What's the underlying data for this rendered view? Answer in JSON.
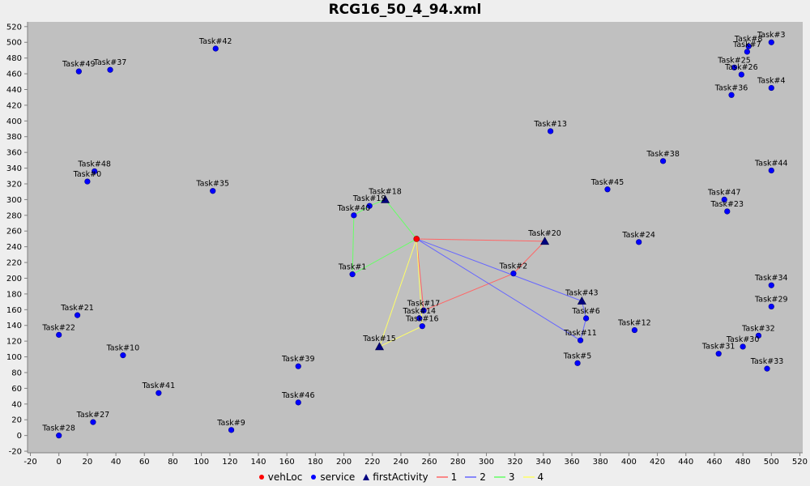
{
  "title": "RCG16_50_4_94.xml",
  "chart_data": {
    "type": "scatter",
    "title": "RCG16_50_4_94.xml",
    "xlabel": "",
    "ylabel": "",
    "xlim": [
      -22,
      522
    ],
    "ylim": [
      -22,
      526
    ],
    "x_ticks": [
      -20,
      0,
      20,
      40,
      60,
      80,
      100,
      120,
      140,
      160,
      180,
      200,
      220,
      240,
      260,
      280,
      300,
      320,
      340,
      360,
      380,
      400,
      420,
      440,
      460,
      480,
      500,
      520
    ],
    "y_ticks": [
      -20,
      0,
      20,
      40,
      60,
      80,
      100,
      120,
      140,
      160,
      180,
      200,
      220,
      240,
      260,
      280,
      300,
      320,
      340,
      360,
      380,
      400,
      420,
      440,
      460,
      480,
      500,
      520
    ],
    "grid": false,
    "background": "#c0c0c0",
    "legend_position": "bottom",
    "legend": [
      {
        "label": "vehLoc",
        "symbol": "circle",
        "color": "#ff0000"
      },
      {
        "label": "service",
        "symbol": "circle",
        "color": "#0000ff"
      },
      {
        "label": "firstActivity",
        "symbol": "triangle",
        "color": "#000080"
      },
      {
        "label": "1",
        "symbol": "line",
        "color": "#ff6666"
      },
      {
        "label": "2",
        "symbol": "line",
        "color": "#6666ff"
      },
      {
        "label": "3",
        "symbol": "line",
        "color": "#66ff66"
      },
      {
        "label": "4",
        "symbol": "line",
        "color": "#ffff66"
      }
    ],
    "vehLoc": {
      "x": 251,
      "y": 250
    },
    "service": [
      {
        "label": "Task#3",
        "x": 500,
        "y": 500
      },
      {
        "label": "Task#8",
        "x": 484,
        "y": 495
      },
      {
        "label": "Task#7",
        "x": 483,
        "y": 488
      },
      {
        "label": "Task#25",
        "x": 474,
        "y": 468
      },
      {
        "label": "Task#26",
        "x": 479,
        "y": 459
      },
      {
        "label": "Task#4",
        "x": 500,
        "y": 442
      },
      {
        "label": "Task#36",
        "x": 472,
        "y": 433
      },
      {
        "label": "Task#42",
        "x": 110,
        "y": 492
      },
      {
        "label": "Task#49",
        "x": 14,
        "y": 463
      },
      {
        "label": "Task#37",
        "x": 36,
        "y": 465
      },
      {
        "label": "Task#13",
        "x": 345,
        "y": 387
      },
      {
        "label": "Task#38",
        "x": 424,
        "y": 349
      },
      {
        "label": "Task#44",
        "x": 500,
        "y": 337
      },
      {
        "label": "Task#48",
        "x": 25,
        "y": 336
      },
      {
        "label": "Task#0",
        "x": 20,
        "y": 323
      },
      {
        "label": "Task#35",
        "x": 108,
        "y": 311
      },
      {
        "label": "Task#45",
        "x": 385,
        "y": 313
      },
      {
        "label": "Task#47",
        "x": 467,
        "y": 300
      },
      {
        "label": "Task#23",
        "x": 469,
        "y": 285
      },
      {
        "label": "Task#19",
        "x": 218,
        "y": 292
      },
      {
        "label": "Task#40",
        "x": 207,
        "y": 280
      },
      {
        "label": "Task#24",
        "x": 407,
        "y": 246
      },
      {
        "label": "Task#2",
        "x": 319,
        "y": 206
      },
      {
        "label": "Task#1",
        "x": 206,
        "y": 205
      },
      {
        "label": "Task#34",
        "x": 500,
        "y": 191
      },
      {
        "label": "Task#29",
        "x": 500,
        "y": 164
      },
      {
        "label": "Task#17",
        "x": 256,
        "y": 159
      },
      {
        "label": "Task#14",
        "x": 253,
        "y": 149
      },
      {
        "label": "Task#16",
        "x": 255,
        "y": 139
      },
      {
        "label": "Task#6",
        "x": 370,
        "y": 149
      },
      {
        "label": "Task#11",
        "x": 366,
        "y": 121
      },
      {
        "label": "Task#12",
        "x": 404,
        "y": 134
      },
      {
        "label": "Task#32",
        "x": 491,
        "y": 127
      },
      {
        "label": "Task#30",
        "x": 480,
        "y": 113
      },
      {
        "label": "Task#31",
        "x": 463,
        "y": 104
      },
      {
        "label": "Task#33",
        "x": 497,
        "y": 85
      },
      {
        "label": "Task#5",
        "x": 364,
        "y": 92
      },
      {
        "label": "Task#21",
        "x": 13,
        "y": 153
      },
      {
        "label": "Task#22",
        "x": 0,
        "y": 128
      },
      {
        "label": "Task#10",
        "x": 45,
        "y": 102
      },
      {
        "label": "Task#39",
        "x": 168,
        "y": 88
      },
      {
        "label": "Task#41",
        "x": 70,
        "y": 54
      },
      {
        "label": "Task#46",
        "x": 168,
        "y": 42
      },
      {
        "label": "Task#27",
        "x": 24,
        "y": 17
      },
      {
        "label": "Task#9",
        "x": 121,
        "y": 7
      },
      {
        "label": "Task#28",
        "x": 0,
        "y": 0
      }
    ],
    "firstActivity": [
      {
        "label": "Task#18",
        "x": 229,
        "y": 300
      },
      {
        "label": "Task#20",
        "x": 341,
        "y": 247
      },
      {
        "label": "Task#43",
        "x": 367,
        "y": 171
      },
      {
        "label": "Task#15",
        "x": 225,
        "y": 113
      }
    ],
    "routes": [
      {
        "name": "1",
        "color": "#ff6666",
        "points": [
          [
            251,
            250
          ],
          [
            341,
            247
          ],
          [
            319,
            206
          ],
          [
            256,
            159
          ],
          [
            251,
            250
          ]
        ]
      },
      {
        "name": "2",
        "color": "#6666ff",
        "points": [
          [
            251,
            250
          ],
          [
            367,
            171
          ],
          [
            370,
            149
          ],
          [
            366,
            121
          ],
          [
            251,
            250
          ]
        ]
      },
      {
        "name": "3",
        "color": "#66ff66",
        "points": [
          [
            251,
            250
          ],
          [
            229,
            300
          ],
          [
            218,
            292
          ],
          [
            207,
            280
          ],
          [
            206,
            205
          ],
          [
            251,
            250
          ]
        ]
      },
      {
        "name": "4",
        "color": "#ffff66",
        "points": [
          [
            251,
            250
          ],
          [
            225,
            113
          ],
          [
            255,
            139
          ],
          [
            251,
            250
          ]
        ]
      }
    ]
  }
}
